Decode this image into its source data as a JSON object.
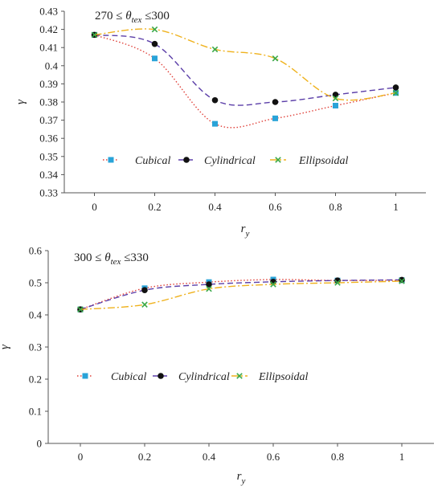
{
  "chart_data": [
    {
      "type": "line",
      "title_prefix": "270 ≤ ",
      "title_symbol": "θ",
      "title_subscript": "tex",
      "title_suffix": " ≤300",
      "xlabel": "r",
      "xlabel_sub": "y",
      "ylabel": "γ",
      "x": [
        0,
        0.2,
        0.4,
        0.6,
        0.8,
        1
      ],
      "x_tick_labels": [
        "0",
        "0.2",
        "0.4",
        "0.6",
        "0.8",
        "1"
      ],
      "xlim": [
        -0.1,
        1.1
      ],
      "ylim": [
        0.33,
        0.43
      ],
      "y_ticks": [
        0.33,
        0.34,
        0.35,
        0.36,
        0.37,
        0.38,
        0.39,
        0.4,
        0.41,
        0.42,
        0.43
      ],
      "y_tick_labels": [
        "0.33",
        "0.34",
        "0.35",
        "0.36",
        "0.37",
        "0.38",
        "0.39",
        "0.4",
        "0.41",
        "0.42",
        "0.43"
      ],
      "grid": false,
      "legend_position": "bottom-left",
      "series": [
        {
          "name": "Cubical",
          "values": [
            0.417,
            0.404,
            0.368,
            0.371,
            0.378,
            0.385
          ],
          "color": "#29a3d8",
          "line_color": "#e0413a",
          "marker": "square",
          "dash": "1.5 2.5"
        },
        {
          "name": "Cylindrical",
          "values": [
            0.417,
            0.412,
            0.381,
            0.38,
            0.384,
            0.388
          ],
          "color": "#111111",
          "line_color": "#5b3ea8",
          "marker": "circle",
          "dash": "7 4"
        },
        {
          "name": "Ellipsoidal",
          "values": [
            0.417,
            0.42,
            0.409,
            0.404,
            0.382,
            0.385
          ],
          "color": "#3aa948",
          "line_color": "#efb21e",
          "marker": "x",
          "dash": "9 3 2 3"
        }
      ]
    },
    {
      "type": "line",
      "title_prefix": "300 ≤ ",
      "title_symbol": "θ",
      "title_subscript": "tex",
      "title_suffix": " ≤330",
      "xlabel": "r",
      "xlabel_sub": "y",
      "ylabel": "γ",
      "x": [
        0,
        0.2,
        0.4,
        0.6,
        0.8,
        1
      ],
      "x_tick_labels": [
        "0",
        "0.2",
        "0.4",
        "0.6",
        "0.8",
        "1"
      ],
      "xlim": [
        -0.1,
        1.1
      ],
      "ylim": [
        0,
        0.6
      ],
      "y_ticks": [
        0,
        0.1,
        0.2,
        0.3,
        0.4,
        0.5,
        0.6
      ],
      "y_tick_labels": [
        "0",
        "0.1",
        "0.2",
        "0.3",
        "0.4",
        "0.5",
        "0.6"
      ],
      "grid": false,
      "legend_position": "middle-left",
      "series": [
        {
          "name": "Cubical",
          "values": [
            0.417,
            0.483,
            0.502,
            0.51,
            0.507,
            0.508
          ],
          "color": "#29a3d8",
          "line_color": "#e0413a",
          "marker": "square",
          "dash": "1.5 2.5"
        },
        {
          "name": "Cylindrical",
          "values": [
            0.417,
            0.477,
            0.495,
            0.503,
            0.507,
            0.509
          ],
          "color": "#111111",
          "line_color": "#5b3ea8",
          "marker": "circle",
          "dash": "7 4"
        },
        {
          "name": "Ellipsoidal",
          "values": [
            0.417,
            0.432,
            0.481,
            0.495,
            0.5,
            0.505
          ],
          "color": "#3aa948",
          "line_color": "#efb21e",
          "marker": "x",
          "dash": "9 3 2 3"
        }
      ]
    }
  ]
}
